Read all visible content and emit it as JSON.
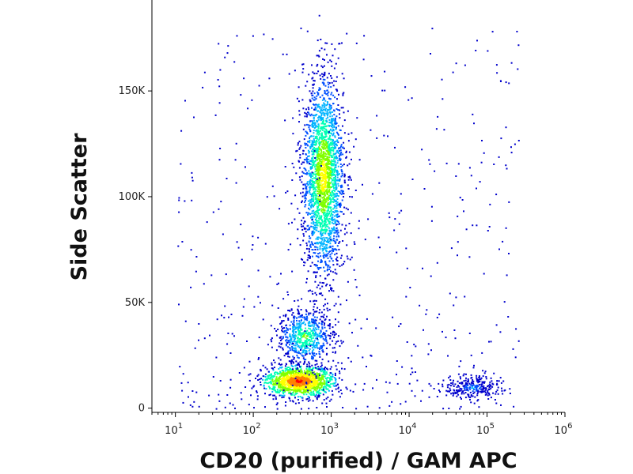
{
  "chart_data": {
    "type": "scatter",
    "subtype": "flow-cytometry-density-dot-plot",
    "title": "",
    "xlabel": "CD20 (purified) / GAM APC",
    "ylabel": "Side Scatter",
    "x_scale": "log",
    "xlim": [
      5,
      1000000
    ],
    "ylim": [
      -2000,
      193000
    ],
    "x_ticks": [
      {
        "value": 10,
        "base": "10",
        "exp": "1"
      },
      {
        "value": 100,
        "base": "10",
        "exp": "2"
      },
      {
        "value": 1000,
        "base": "10",
        "exp": "3"
      },
      {
        "value": 10000,
        "base": "10",
        "exp": "4"
      },
      {
        "value": 100000,
        "base": "10",
        "exp": "5"
      },
      {
        "value": 1000000,
        "base": "10",
        "exp": "6"
      }
    ],
    "y_ticks": [
      {
        "value": 0,
        "label": "0"
      },
      {
        "value": 50000,
        "label": "50K"
      },
      {
        "value": 100000,
        "label": "100K"
      },
      {
        "value": 150000,
        "label": "150K"
      }
    ],
    "grid": false,
    "legend": "none",
    "color_scale": [
      "#0000cc",
      "#0050ff",
      "#00b4ff",
      "#00ffb4",
      "#80ff00",
      "#ffff00",
      "#ff8000",
      "#ff0000"
    ],
    "populations": [
      {
        "x_center": 380,
        "y_center": 13000,
        "x_spread_decades": 0.22,
        "y_spread": 3500,
        "count": 1400
      },
      {
        "x_center": 450,
        "y_center": 34000,
        "x_spread_decades": 0.18,
        "y_spread": 7000,
        "count": 650
      },
      {
        "x_center": 780,
        "y_center": 110000,
        "x_spread_decades": 0.13,
        "y_spread": 23000,
        "count": 2300
      },
      {
        "x_center": 65000,
        "y_center": 10000,
        "x_spread_decades": 0.18,
        "y_spread": 2500,
        "count": 260
      }
    ]
  }
}
